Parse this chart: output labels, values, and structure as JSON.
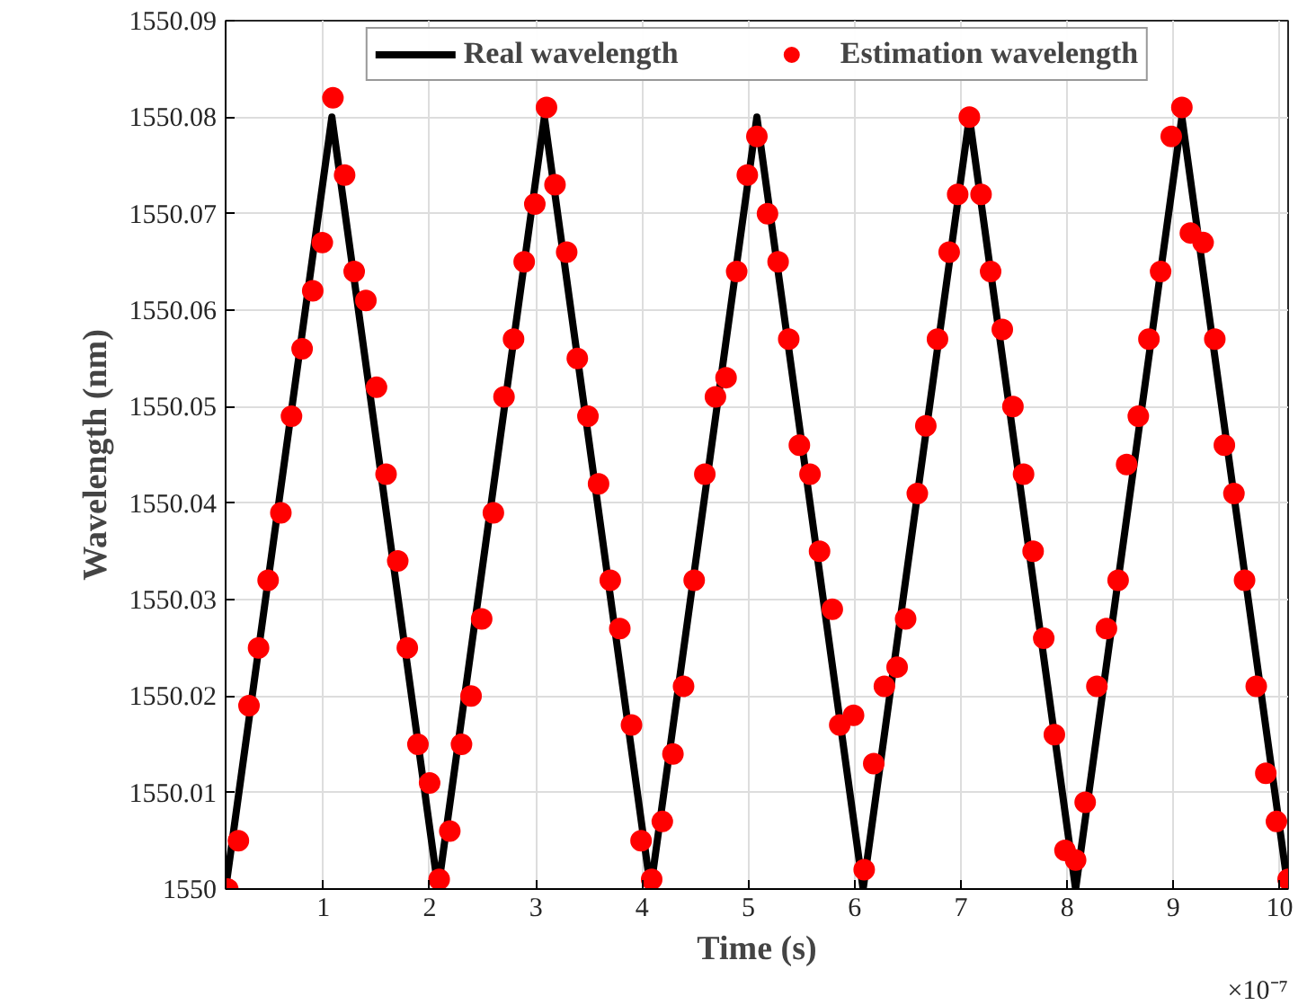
{
  "chart_data": {
    "type": "line",
    "xlabel": "Time (s)",
    "ylabel": "Wavelength (nm)",
    "annotations": [
      "×10⁻⁷"
    ],
    "xlim": [
      0.08,
      10.08
    ],
    "xticks": [
      1,
      2,
      3,
      4,
      5,
      6,
      7,
      8,
      9,
      10
    ],
    "ylim": [
      1550,
      1550.09
    ],
    "yticks": [
      1550,
      1550.01,
      1550.02,
      1550.03,
      1550.04,
      1550.05,
      1550.06,
      1550.07,
      1550.08,
      1550.09
    ],
    "grid": true,
    "legend": "top",
    "series": [
      {
        "name": "Real wavelength",
        "color": "#000000",
        "line_style": "solid",
        "marker": "none",
        "x": [
          0.08,
          1.08,
          2.08,
          3.08,
          4.08,
          5.08,
          6.08,
          7.08,
          8.08,
          9.08,
          10.08
        ],
        "values": [
          1550,
          1550.08,
          1550,
          1550.08,
          1550,
          1550.08,
          1550,
          1550.08,
          1550,
          1550.08,
          1550
        ]
      },
      {
        "name": "Estimation wavelength",
        "type": "scatter",
        "color": "#ff0000",
        "marker": "circle",
        "x": [
          0.1,
          0.2,
          0.3,
          0.39,
          0.48,
          0.6,
          0.7,
          0.8,
          0.9,
          0.99,
          1.09,
          1.2,
          1.29,
          1.4,
          1.5,
          1.59,
          1.7,
          1.79,
          1.89,
          2.0,
          2.09,
          2.19,
          2.3,
          2.39,
          2.49,
          2.6,
          2.7,
          2.79,
          2.89,
          2.99,
          3.1,
          3.18,
          3.29,
          3.39,
          3.49,
          3.59,
          3.7,
          3.79,
          3.9,
          3.99,
          4.09,
          4.19,
          4.29,
          4.39,
          4.49,
          4.59,
          4.69,
          4.79,
          4.89,
          4.99,
          5.08,
          5.18,
          5.28,
          5.38,
          5.48,
          5.58,
          5.67,
          5.79,
          5.86,
          5.99,
          6.09,
          6.18,
          6.28,
          6.4,
          6.48,
          6.59,
          6.67,
          6.78,
          6.89,
          6.97,
          7.08,
          7.19,
          7.28,
          7.39,
          7.49,
          7.59,
          7.68,
          7.78,
          7.88,
          7.98,
          8.08,
          8.17,
          8.28,
          8.37,
          8.48,
          8.56,
          8.67,
          8.77,
          8.88,
          8.98,
          9.08,
          9.16,
          9.28,
          9.39,
          9.48,
          9.57,
          9.67,
          9.78,
          9.87,
          9.97,
          10.08
        ],
        "values": [
          1550.0,
          1550.005,
          1550.019,
          1550.025,
          1550.032,
          1550.039,
          1550.049,
          1550.056,
          1550.062,
          1550.067,
          1550.082,
          1550.074,
          1550.064,
          1550.061,
          1550.052,
          1550.043,
          1550.034,
          1550.025,
          1550.015,
          1550.011,
          1550.001,
          1550.006,
          1550.015,
          1550.02,
          1550.028,
          1550.039,
          1550.051,
          1550.057,
          1550.065,
          1550.071,
          1550.081,
          1550.073,
          1550.066,
          1550.055,
          1550.049,
          1550.042,
          1550.032,
          1550.027,
          1550.017,
          1550.005,
          1550.001,
          1550.007,
          1550.014,
          1550.021,
          1550.032,
          1550.043,
          1550.051,
          1550.053,
          1550.064,
          1550.074,
          1550.078,
          1550.07,
          1550.065,
          1550.057,
          1550.046,
          1550.043,
          1550.035,
          1550.029,
          1550.017,
          1550.018,
          1550.002,
          1550.013,
          1550.021,
          1550.023,
          1550.028,
          1550.041,
          1550.048,
          1550.057,
          1550.066,
          1550.072,
          1550.08,
          1550.072,
          1550.064,
          1550.058,
          1550.05,
          1550.043,
          1550.035,
          1550.026,
          1550.016,
          1550.004,
          1550.003,
          1550.009,
          1550.021,
          1550.027,
          1550.032,
          1550.044,
          1550.049,
          1550.057,
          1550.064,
          1550.078,
          1550.081,
          1550.068,
          1550.067,
          1550.057,
          1550.046,
          1550.041,
          1550.032,
          1550.021,
          1550.012,
          1550.007,
          1550.001
        ]
      }
    ]
  }
}
